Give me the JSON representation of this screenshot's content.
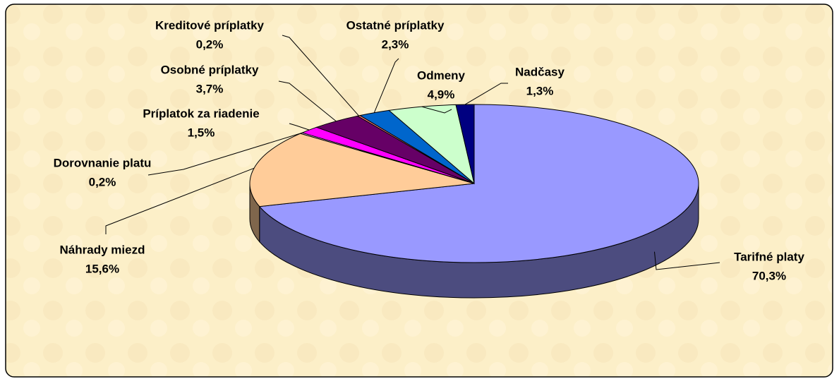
{
  "chart_data": {
    "type": "pie3d",
    "categories": [
      "Tarifné platy",
      "Náhrady miezd",
      "Dorovnanie platu",
      "Príplatok za riadenie",
      "Osobné príplatky",
      "Kreditové príplatky",
      "Ostatné príplatky",
      "Odmeny",
      "Nadčasy"
    ],
    "values": [
      70.3,
      15.6,
      0.2,
      1.5,
      3.7,
      0.2,
      2.3,
      4.9,
      1.3
    ],
    "value_labels": [
      "70,3%",
      "15,6%",
      "0,2%",
      "1,5%",
      "3,7%",
      "0,2%",
      "2,3%",
      "4,9%",
      "1,3%"
    ],
    "colors": [
      "#9999ff",
      "#ffcc99",
      "#ffccff",
      "#ff00ff",
      "#660066",
      "#ff8080",
      "#0066cc",
      "#ccffcc",
      "#000080"
    ]
  }
}
